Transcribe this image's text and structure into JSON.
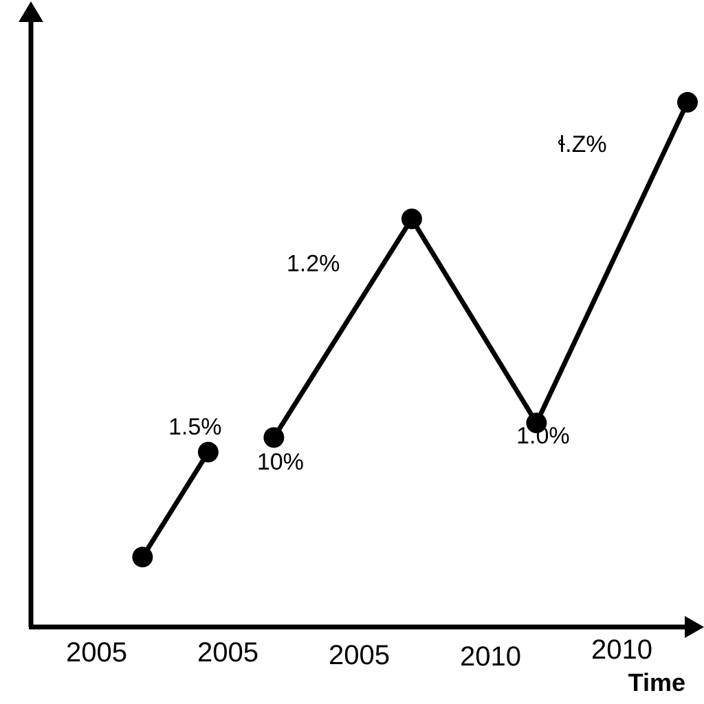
{
  "chart_data": {
    "type": "line",
    "title": "",
    "xlabel": "Time",
    "ylabel": "",
    "x_tick_labels": [
      "2005",
      "2005",
      "2005",
      "2010",
      "2010"
    ],
    "ylim": [
      0,
      10
    ],
    "grid": false,
    "legend": "none",
    "series": [
      {
        "segments": [
          {
            "points": [
              {
                "x": 0.35,
                "y": 1.2
              },
              {
                "x": 0.85,
                "y": 3.0
              }
            ]
          },
          {
            "points": [
              {
                "x": 1.35,
                "y": 3.25
              },
              {
                "x": 2.4,
                "y": 7.0
              },
              {
                "x": 3.35,
                "y": 3.5
              },
              {
                "x": 4.5,
                "y": 9.0
              }
            ]
          }
        ]
      }
    ],
    "annotations": [
      {
        "text": "1.5%",
        "x": 0.75,
        "y": 3.3
      },
      {
        "text": "10%",
        "x": 1.4,
        "y": 2.7
      },
      {
        "text": "1.2%",
        "x": 1.65,
        "y": 6.1
      },
      {
        "text": "1.0%",
        "x": 3.4,
        "y": 3.15
      },
      {
        "text": "ɬ.Z%",
        "x": 3.7,
        "y": 8.15
      }
    ],
    "axis_color": "#000000",
    "line_color": "#000000",
    "marker_color": "#000000"
  }
}
